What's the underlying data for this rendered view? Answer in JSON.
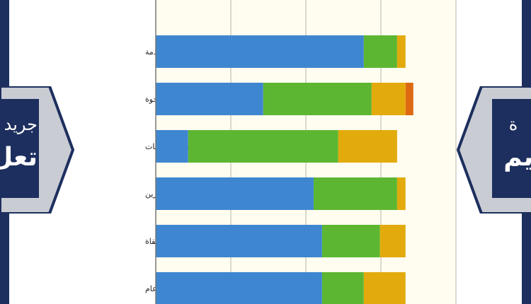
{
  "chart_data": {
    "type": "bar",
    "orientation": "horizontal",
    "stacked": true,
    "title": "",
    "xlabel": "",
    "ylabel": "",
    "xlim": [
      0,
      100
    ],
    "grid": true,
    "gridlines_at": [
      25,
      50,
      75,
      100
    ],
    "categories": [
      "جودة الخدمة",
      "الحصول على الخدمة المرجوة",
      "تلبية الاحتياجات",
      "توصية البرنامج للآخرين",
      "الرضا عن المساعدة المتلقاة",
      "الرضا عن الخدمة بشكل عام"
    ],
    "series": [
      {
        "color": "#3f86d0",
        "values": [
          69.3,
          35.8,
          10.8,
          52.6,
          55.4,
          55.4
        ]
      },
      {
        "color": "#5db631",
        "values": [
          11.1,
          36.1,
          50.0,
          27.8,
          19.3,
          13.9
        ]
      },
      {
        "color": "#e2aa0c",
        "values": [
          2.8,
          11.3,
          19.6,
          2.8,
          8.5,
          13.9
        ]
      },
      {
        "color": "#dd6a12",
        "values": [
          0,
          2.6,
          0,
          0,
          0,
          0
        ]
      }
    ],
    "plot_background": "#fffdf0"
  },
  "watermark": {
    "logo_text": "جريدة تعليم",
    "color": "#1d2f5e"
  }
}
